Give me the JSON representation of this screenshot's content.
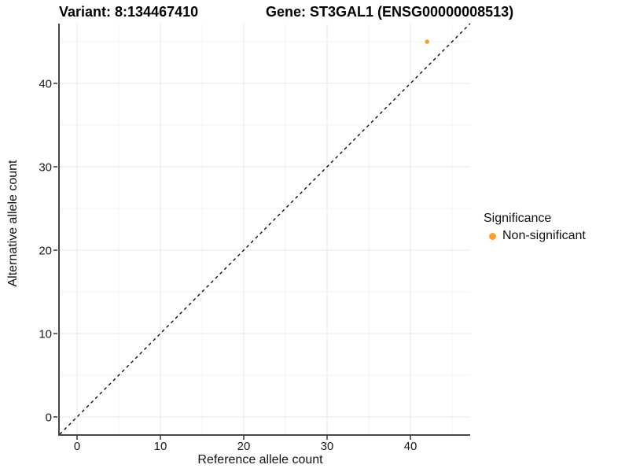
{
  "chart_data": {
    "type": "scatter",
    "title_left": "Variant: 8:134467410",
    "title_right": "Gene: ST3GAL1 (ENSG00000008513)",
    "xlabel": "Reference allele count",
    "ylabel": "Alternative allele count",
    "xlim": [
      -2.2,
      47.2
    ],
    "ylim": [
      -2.1,
      47.2
    ],
    "x_ticks": [
      0,
      10,
      20,
      30,
      40
    ],
    "y_ticks": [
      0,
      10,
      20,
      30,
      40
    ],
    "x_minor_gridlines": [
      5,
      15,
      25,
      35,
      45
    ],
    "y_minor_gridlines": [
      5,
      15,
      25,
      35,
      45
    ],
    "grid": "major+minor",
    "series": [
      {
        "name": "Non-significant",
        "color": "#F9A030",
        "points": [
          {
            "x": 42,
            "y": 45
          }
        ]
      }
    ],
    "reference_line": {
      "type": "identity y=x",
      "style": "dashed",
      "color": "#000000"
    },
    "legend": {
      "title": "Significance",
      "position": "right",
      "items": [
        {
          "label": "Non-significant",
          "color": "#F9A030"
        }
      ]
    },
    "colors": {
      "background": "#ffffff",
      "axis_line": "#474747",
      "tick_mark": "#333333",
      "grid_major": "#e7e7e7",
      "grid_minor": "#f3f3f3",
      "point": "#F9A030"
    }
  }
}
